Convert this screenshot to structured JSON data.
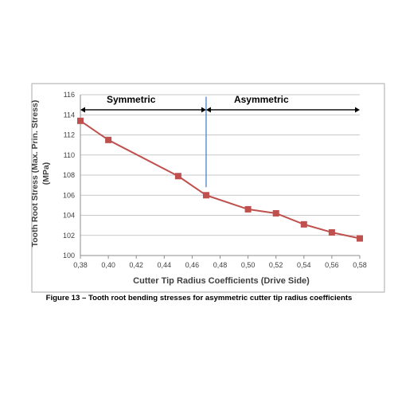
{
  "caption": "Figure 13 – Tooth root bending stresses for asymmetric cutter tip radius coefficients",
  "chart_data": {
    "type": "line",
    "x": [
      0.38,
      0.4,
      0.45,
      0.47,
      0.5,
      0.52,
      0.54,
      0.56,
      0.58
    ],
    "series": [
      {
        "values": [
          113.4,
          111.5,
          107.9,
          106.0,
          104.6,
          104.2,
          103.1,
          102.3,
          101.7
        ]
      }
    ],
    "x_ticks": [
      "0,38",
      "0,40",
      "0,42",
      "0,44",
      "0,46",
      "0,48",
      "0,50",
      "0,52",
      "0,54",
      "0,56",
      "0,58"
    ],
    "y_ticks": [
      "100",
      "102",
      "104",
      "106",
      "108",
      "110",
      "112",
      "114",
      "116"
    ],
    "xlim": [
      0.38,
      0.58
    ],
    "ylim": [
      100,
      116
    ],
    "xlabel": "Cutter Tip Radius Coefficients (Drive Side)",
    "ylabel_lines": [
      "Tooth Root Stress (Max. Prin. Stress)",
      "(MPa)"
    ],
    "grid": "horizontal",
    "annotations": {
      "regions": [
        {
          "label": "Symmetric",
          "from": 0.38,
          "to": 0.47,
          "y": 114.5
        },
        {
          "label": "Asymmetric",
          "from": 0.47,
          "to": 0.58,
          "y": 114.5
        }
      ],
      "divider": {
        "x": 0.47,
        "from": 106.8,
        "to": 115.8
      }
    },
    "colors": {
      "series": "#c0504d",
      "grid": "#b7b7b7",
      "divider": "#4f81bd",
      "axis_text": "#404040",
      "frame": "#aaaaaa"
    }
  }
}
